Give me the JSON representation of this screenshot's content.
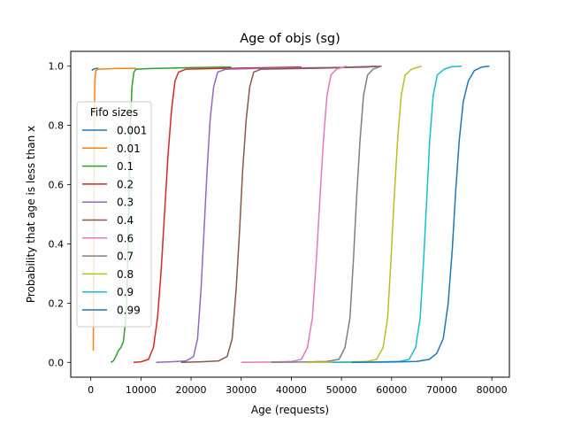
{
  "chart_data": {
    "type": "line",
    "title": "Age of objs (sg)",
    "xlabel": "Age (requests)",
    "ylabel": "Probability that age is less than x",
    "xlim": [
      -4000,
      83500
    ],
    "ylim": [
      -0.05,
      1.05
    ],
    "xticks": [
      0,
      10000,
      20000,
      30000,
      40000,
      50000,
      60000,
      70000,
      80000
    ],
    "xtick_labels": [
      "0",
      "10000",
      "20000",
      "30000",
      "40000",
      "50000",
      "60000",
      "70000",
      "80000"
    ],
    "yticks": [
      0.0,
      0.2,
      0.4,
      0.6,
      0.8,
      1.0
    ],
    "ytick_labels": [
      "0.0",
      "0.2",
      "0.4",
      "0.6",
      "0.8",
      "1.0"
    ],
    "grid": false,
    "legend": {
      "title": "Fifo sizes",
      "placement": "center-left"
    },
    "series": [
      {
        "name": "0.001",
        "color": "#1f77b4",
        "points": [
          [
            200,
            0.985
          ],
          [
            500,
            0.99
          ],
          [
            1000,
            0.992
          ],
          [
            1500,
            0.993
          ]
        ]
      },
      {
        "name": "0.01",
        "color": "#ff7f0e",
        "points": [
          [
            500,
            0.04
          ],
          [
            560,
            0.2
          ],
          [
            620,
            0.5
          ],
          [
            700,
            0.8
          ],
          [
            800,
            0.95
          ],
          [
            1000,
            0.985
          ],
          [
            1500,
            0.99
          ],
          [
            5000,
            0.992
          ],
          [
            9000,
            0.993
          ]
        ]
      },
      {
        "name": "0.1",
        "color": "#2ca02c",
        "points": [
          [
            4000,
            0.0
          ],
          [
            4500,
            0.005
          ],
          [
            5000,
            0.02
          ],
          [
            5500,
            0.04
          ],
          [
            6000,
            0.05
          ],
          [
            6500,
            0.07
          ],
          [
            7000,
            0.15
          ],
          [
            7300,
            0.3
          ],
          [
            7600,
            0.55
          ],
          [
            7900,
            0.8
          ],
          [
            8200,
            0.93
          ],
          [
            8600,
            0.98
          ],
          [
            9000,
            0.99
          ],
          [
            12000,
            0.992
          ],
          [
            20000,
            0.995
          ],
          [
            28000,
            0.997
          ]
        ]
      },
      {
        "name": "0.2",
        "color": "#d62728",
        "points": [
          [
            8500,
            0.0
          ],
          [
            10000,
            0.002
          ],
          [
            11500,
            0.01
          ],
          [
            12500,
            0.05
          ],
          [
            13300,
            0.15
          ],
          [
            14000,
            0.3
          ],
          [
            14700,
            0.5
          ],
          [
            15400,
            0.7
          ],
          [
            16100,
            0.85
          ],
          [
            16800,
            0.95
          ],
          [
            17500,
            0.98
          ],
          [
            19000,
            0.99
          ],
          [
            25000,
            0.992
          ],
          [
            35000,
            0.995
          ],
          [
            42000,
            0.997
          ]
        ]
      },
      {
        "name": "0.3",
        "color": "#9467bd",
        "points": [
          [
            13000,
            0.0
          ],
          [
            16000,
            0.002
          ],
          [
            19000,
            0.005
          ],
          [
            20500,
            0.02
          ],
          [
            21300,
            0.08
          ],
          [
            22000,
            0.25
          ],
          [
            22600,
            0.45
          ],
          [
            23200,
            0.65
          ],
          [
            23800,
            0.82
          ],
          [
            24500,
            0.93
          ],
          [
            25300,
            0.98
          ],
          [
            27000,
            0.99
          ],
          [
            35000,
            0.993
          ],
          [
            50000,
            0.996
          ],
          [
            57000,
            1.0
          ]
        ]
      },
      {
        "name": "0.4",
        "color": "#8c564b",
        "points": [
          [
            18000,
            0.0
          ],
          [
            22000,
            0.002
          ],
          [
            25500,
            0.005
          ],
          [
            27200,
            0.02
          ],
          [
            28200,
            0.08
          ],
          [
            29000,
            0.25
          ],
          [
            29700,
            0.45
          ],
          [
            30300,
            0.65
          ],
          [
            31000,
            0.82
          ],
          [
            31700,
            0.93
          ],
          [
            32500,
            0.98
          ],
          [
            34000,
            0.99
          ],
          [
            45000,
            0.993
          ],
          [
            55000,
            0.997
          ],
          [
            58000,
            1.0
          ]
        ]
      },
      {
        "name": "0.6",
        "color": "#e377c2",
        "points": [
          [
            30000,
            0.0
          ],
          [
            36000,
            0.001
          ],
          [
            40000,
            0.003
          ],
          [
            42000,
            0.01
          ],
          [
            43200,
            0.05
          ],
          [
            44200,
            0.15
          ],
          [
            45000,
            0.35
          ],
          [
            45700,
            0.55
          ],
          [
            46400,
            0.75
          ],
          [
            47100,
            0.9
          ],
          [
            47900,
            0.97
          ],
          [
            49000,
            0.99
          ],
          [
            51000,
            1.0
          ]
        ]
      },
      {
        "name": "0.7",
        "color": "#7f7f7f",
        "points": [
          [
            36000,
            0.0
          ],
          [
            42000,
            0.001
          ],
          [
            47000,
            0.003
          ],
          [
            49500,
            0.01
          ],
          [
            50700,
            0.05
          ],
          [
            51700,
            0.15
          ],
          [
            52400,
            0.35
          ],
          [
            53000,
            0.55
          ],
          [
            53700,
            0.75
          ],
          [
            54400,
            0.9
          ],
          [
            55200,
            0.97
          ],
          [
            56300,
            0.99
          ],
          [
            58000,
            1.0
          ]
        ]
      },
      {
        "name": "0.8",
        "color": "#bcbd22",
        "points": [
          [
            43000,
            0.0
          ],
          [
            50000,
            0.001
          ],
          [
            55000,
            0.003
          ],
          [
            57000,
            0.01
          ],
          [
            58300,
            0.05
          ],
          [
            59200,
            0.15
          ],
          [
            59900,
            0.35
          ],
          [
            60500,
            0.55
          ],
          [
            61200,
            0.75
          ],
          [
            61900,
            0.9
          ],
          [
            62700,
            0.97
          ],
          [
            64000,
            0.99
          ],
          [
            66000,
            1.0
          ]
        ]
      },
      {
        "name": "0.9",
        "color": "#17becf",
        "points": [
          [
            48000,
            0.0
          ],
          [
            56000,
            0.001
          ],
          [
            61500,
            0.003
          ],
          [
            63500,
            0.01
          ],
          [
            64800,
            0.05
          ],
          [
            65700,
            0.15
          ],
          [
            66400,
            0.35
          ],
          [
            67000,
            0.55
          ],
          [
            67600,
            0.75
          ],
          [
            68300,
            0.9
          ],
          [
            69100,
            0.97
          ],
          [
            70500,
            0.99
          ],
          [
            72000,
            0.998
          ],
          [
            74000,
            1.0
          ]
        ]
      },
      {
        "name": "0.99",
        "color": "#1f77b4",
        "points": [
          [
            52000,
            0.0
          ],
          [
            60000,
            0.001
          ],
          [
            65000,
            0.003
          ],
          [
            67500,
            0.01
          ],
          [
            69000,
            0.03
          ],
          [
            70300,
            0.08
          ],
          [
            71300,
            0.2
          ],
          [
            72100,
            0.38
          ],
          [
            72800,
            0.58
          ],
          [
            73500,
            0.75
          ],
          [
            74300,
            0.88
          ],
          [
            75300,
            0.95
          ],
          [
            76500,
            0.985
          ],
          [
            78000,
            0.997
          ],
          [
            79500,
            1.0
          ]
        ]
      }
    ]
  }
}
